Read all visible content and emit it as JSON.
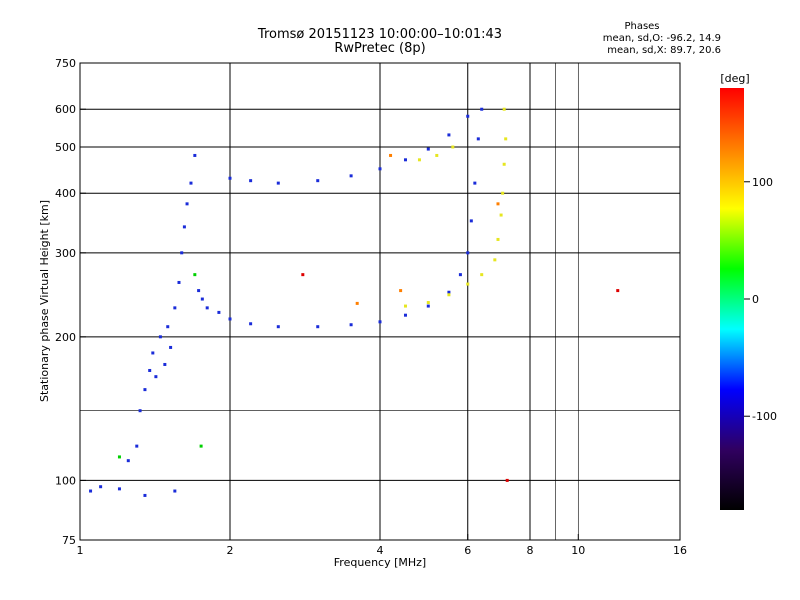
{
  "chart_data": {
    "type": "scatter",
    "title": "Tromsø 20151123 10:00:00–10:01:43",
    "subtitle": "RwPretec (8p)",
    "xlabel": "Frequency [MHz]",
    "ylabel": "Stationary phase Virtual Height [km]",
    "x_scale": "log",
    "y_scale": "log",
    "xlim": [
      1,
      16
    ],
    "ylim": [
      75,
      750
    ],
    "x_ticks": [
      1,
      2,
      4,
      6,
      8,
      10,
      16
    ],
    "x_tick_labels": [
      "1",
      "2",
      "4",
      "6",
      "8",
      "10",
      "16"
    ],
    "x_gridlines": [
      2,
      4,
      6,
      8
    ],
    "x_minor_gridlines": [
      9,
      10
    ],
    "y_ticks": [
      75,
      100,
      200,
      300,
      400,
      500,
      600,
      750
    ],
    "y_tick_labels": [
      "75",
      "100",
      "200",
      "300",
      "400",
      "500",
      "600",
      "750"
    ],
    "y_gridlines": [
      100,
      200,
      300,
      400,
      500,
      600
    ],
    "y_minor_gridlines": [
      140
    ],
    "grid": true,
    "phase_info": {
      "heading": "Phases",
      "line_o": "mean, sd,O: -96.2, 14.9",
      "line_x": "mean, sd,X: 89.7, 20.6"
    },
    "colorbar": {
      "label": "[deg]",
      "range": [
        -180,
        180
      ],
      "ticks": [
        100,
        0,
        -100
      ],
      "tick_labels": [
        "100",
        "0",
        "-100"
      ],
      "colors": [
        "#ff0000",
        "#ff8000",
        "#ffff00",
        "#00ff00",
        "#00ffff",
        "#0000ff",
        "#300060",
        "#000000"
      ]
    },
    "series": [
      {
        "color": "#1a2cd9",
        "points": [
          {
            "x": 1.25,
            "y": 110
          },
          {
            "x": 1.3,
            "y": 118
          },
          {
            "x": 1.32,
            "y": 140
          },
          {
            "x": 1.35,
            "y": 155
          },
          {
            "x": 1.38,
            "y": 170
          },
          {
            "x": 1.4,
            "y": 185
          },
          {
            "x": 1.42,
            "y": 165
          },
          {
            "x": 1.45,
            "y": 200
          },
          {
            "x": 1.48,
            "y": 175
          },
          {
            "x": 1.5,
            "y": 210
          },
          {
            "x": 1.52,
            "y": 190
          },
          {
            "x": 1.55,
            "y": 230
          },
          {
            "x": 1.58,
            "y": 260
          },
          {
            "x": 1.6,
            "y": 300
          },
          {
            "x": 1.62,
            "y": 340
          },
          {
            "x": 1.64,
            "y": 380
          },
          {
            "x": 1.67,
            "y": 420
          },
          {
            "x": 1.7,
            "y": 480
          },
          {
            "x": 1.73,
            "y": 250
          },
          {
            "x": 1.76,
            "y": 240
          },
          {
            "x": 1.8,
            "y": 230
          },
          {
            "x": 1.9,
            "y": 225
          },
          {
            "x": 2.0,
            "y": 218
          },
          {
            "x": 2.2,
            "y": 213
          },
          {
            "x": 2.5,
            "y": 210
          },
          {
            "x": 3.0,
            "y": 210
          },
          {
            "x": 3.5,
            "y": 212
          },
          {
            "x": 4.0,
            "y": 215
          },
          {
            "x": 4.5,
            "y": 222
          },
          {
            "x": 5.0,
            "y": 232
          },
          {
            "x": 5.5,
            "y": 248
          },
          {
            "x": 5.8,
            "y": 270
          },
          {
            "x": 6.0,
            "y": 300
          },
          {
            "x": 6.1,
            "y": 350
          },
          {
            "x": 6.2,
            "y": 420
          },
          {
            "x": 6.3,
            "y": 520
          },
          {
            "x": 6.4,
            "y": 600
          },
          {
            "x": 2.0,
            "y": 430
          },
          {
            "x": 2.2,
            "y": 425
          },
          {
            "x": 2.5,
            "y": 420
          },
          {
            "x": 3.0,
            "y": 425
          },
          {
            "x": 3.5,
            "y": 435
          },
          {
            "x": 4.0,
            "y": 450
          },
          {
            "x": 4.5,
            "y": 470
          },
          {
            "x": 5.0,
            "y": 495
          },
          {
            "x": 5.5,
            "y": 530
          },
          {
            "x": 6.0,
            "y": 580
          },
          {
            "x": 1.05,
            "y": 95
          },
          {
            "x": 1.1,
            "y": 97
          },
          {
            "x": 1.2,
            "y": 96
          },
          {
            "x": 1.35,
            "y": 93
          },
          {
            "x": 1.55,
            "y": 95
          }
        ]
      },
      {
        "color": "#e6e620",
        "points": [
          {
            "x": 4.5,
            "y": 232
          },
          {
            "x": 5.0,
            "y": 236
          },
          {
            "x": 5.5,
            "y": 245
          },
          {
            "x": 6.0,
            "y": 258
          },
          {
            "x": 6.4,
            "y": 270
          },
          {
            "x": 6.8,
            "y": 290
          },
          {
            "x": 6.9,
            "y": 320
          },
          {
            "x": 7.0,
            "y": 360
          },
          {
            "x": 7.05,
            "y": 400
          },
          {
            "x": 7.1,
            "y": 460
          },
          {
            "x": 7.15,
            "y": 520
          },
          {
            "x": 7.1,
            "y": 600
          },
          {
            "x": 4.8,
            "y": 470
          },
          {
            "x": 5.2,
            "y": 480
          },
          {
            "x": 5.6,
            "y": 500
          }
        ]
      },
      {
        "color": "#ff7f00",
        "points": [
          {
            "x": 3.6,
            "y": 235
          },
          {
            "x": 4.4,
            "y": 250
          },
          {
            "x": 4.2,
            "y": 480
          },
          {
            "x": 6.9,
            "y": 380
          }
        ]
      },
      {
        "color": "#00d000",
        "points": [
          {
            "x": 1.2,
            "y": 112
          },
          {
            "x": 1.75,
            "y": 118
          },
          {
            "x": 1.7,
            "y": 270
          }
        ]
      },
      {
        "color": "#dd0000",
        "points": [
          {
            "x": 12.0,
            "y": 250
          },
          {
            "x": 2.8,
            "y": 270
          },
          {
            "x": 7.2,
            "y": 100
          }
        ]
      }
    ]
  }
}
